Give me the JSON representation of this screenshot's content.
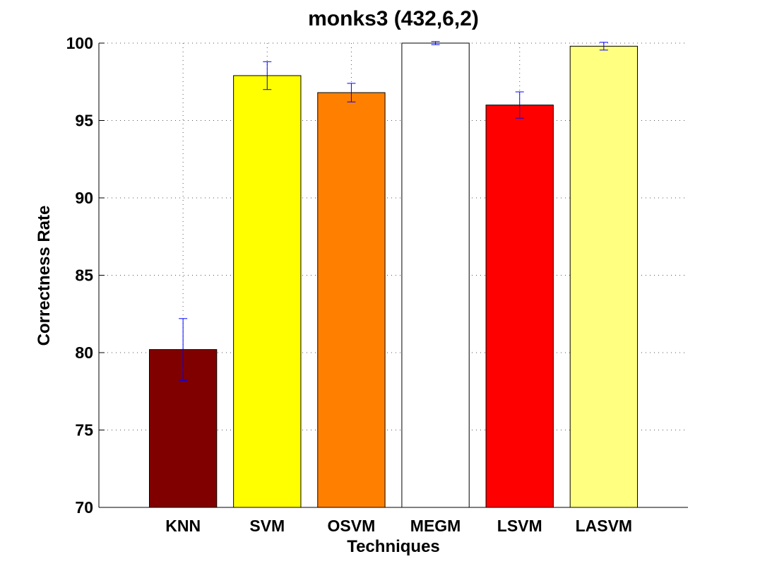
{
  "chart_data": {
    "type": "bar",
    "title": "monks3 (432,6,2)",
    "xlabel": "Techniques",
    "ylabel": "Correctness Rate",
    "ylim": [
      70,
      100
    ],
    "yticks": [
      70,
      75,
      80,
      85,
      90,
      95,
      100
    ],
    "grid": true,
    "categories": [
      "KNN",
      "SVM",
      "OSVM",
      "MEGM",
      "LSVM",
      "LASVM"
    ],
    "values": [
      80.2,
      97.9,
      96.8,
      100.0,
      96.0,
      99.8
    ],
    "error": [
      2.0,
      0.9,
      0.6,
      0.1,
      0.85,
      0.25
    ],
    "colors": [
      "#800000",
      "#ffff00",
      "#ff8000",
      "#ffffff",
      "#ff0000",
      "#ffff80"
    ],
    "error_color": "#0000ff"
  }
}
